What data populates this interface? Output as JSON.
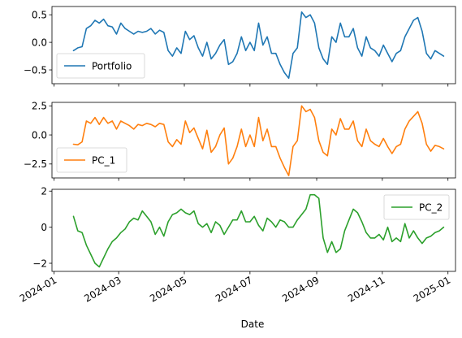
{
  "chart_data": {
    "type": "line",
    "xlabel": "Date",
    "x_ticks": [
      "2024-01",
      "2024-03",
      "2024-05",
      "2024-07",
      "2024-09",
      "2024-11",
      "2025-01"
    ],
    "xlim": [
      "2023-12-30",
      "2025-01-08"
    ],
    "panels": [
      {
        "series": [
          {
            "name": "Portfolio",
            "color": "#1f77b4",
            "x": [
              "2024-01-19",
              "2024-01-23",
              "2024-01-27",
              "2024-01-31",
              "2024-02-04",
              "2024-02-08",
              "2024-02-12",
              "2024-02-16",
              "2024-02-20",
              "2024-02-24",
              "2024-02-28",
              "2024-03-03",
              "2024-03-07",
              "2024-03-11",
              "2024-03-15",
              "2024-03-19",
              "2024-03-23",
              "2024-03-27",
              "2024-03-31",
              "2024-04-04",
              "2024-04-08",
              "2024-04-12",
              "2024-04-16",
              "2024-04-20",
              "2024-04-24",
              "2024-04-28",
              "2024-05-02",
              "2024-05-06",
              "2024-05-10",
              "2024-05-14",
              "2024-05-18",
              "2024-05-22",
              "2024-05-26",
              "2024-05-30",
              "2024-06-03",
              "2024-06-07",
              "2024-06-11",
              "2024-06-15",
              "2024-06-19",
              "2024-06-23",
              "2024-06-27",
              "2024-07-01",
              "2024-07-05",
              "2024-07-09",
              "2024-07-13",
              "2024-07-17",
              "2024-07-21",
              "2024-07-25",
              "2024-07-29",
              "2024-08-02",
              "2024-08-06",
              "2024-08-10",
              "2024-08-14",
              "2024-08-18",
              "2024-08-22",
              "2024-08-26",
              "2024-08-30",
              "2024-09-03",
              "2024-09-07",
              "2024-09-11",
              "2024-09-15",
              "2024-09-19",
              "2024-09-23",
              "2024-09-27",
              "2024-10-01",
              "2024-10-05",
              "2024-10-09",
              "2024-10-13",
              "2024-10-17",
              "2024-10-21",
              "2024-10-25",
              "2024-10-29",
              "2024-11-02",
              "2024-11-06",
              "2024-11-10",
              "2024-11-14",
              "2024-11-18",
              "2024-11-22",
              "2024-11-26",
              "2024-11-30",
              "2024-12-04",
              "2024-12-08",
              "2024-12-12",
              "2024-12-16",
              "2024-12-20",
              "2024-12-24",
              "2024-12-28"
            ],
            "values": [
              -0.15,
              -0.1,
              -0.08,
              0.25,
              0.3,
              0.4,
              0.35,
              0.42,
              0.3,
              0.28,
              0.15,
              0.35,
              0.25,
              0.2,
              0.15,
              0.2,
              0.18,
              0.2,
              0.25,
              0.15,
              0.22,
              0.18,
              -0.15,
              -0.25,
              -0.1,
              -0.2,
              0.2,
              0.05,
              0.12,
              -0.1,
              -0.25,
              0.0,
              -0.3,
              -0.2,
              -0.05,
              0.05,
              -0.4,
              -0.35,
              -0.2,
              0.1,
              -0.15,
              0.0,
              -0.15,
              0.35,
              -0.05,
              0.1,
              -0.2,
              -0.2,
              -0.4,
              -0.55,
              -0.65,
              -0.2,
              -0.1,
              0.55,
              0.45,
              0.5,
              0.35,
              -0.1,
              -0.3,
              -0.4,
              0.1,
              0.0,
              0.35,
              0.1,
              0.1,
              0.25,
              -0.1,
              -0.25,
              0.1,
              -0.1,
              -0.15,
              -0.25,
              -0.05,
              -0.2,
              -0.35,
              -0.2,
              -0.15,
              0.1,
              0.25,
              0.4,
              0.45,
              0.2,
              -0.2,
              -0.3,
              -0.15,
              -0.2,
              -0.25
            ]
          }
        ],
        "ylim": [
          -0.75,
          0.65
        ],
        "y_ticks": [
          -0.5,
          0.0,
          0.5
        ],
        "y_tick_labels": [
          "−0.5",
          "0.0",
          "0.5"
        ],
        "legend_position": "lower-left"
      },
      {
        "series": [
          {
            "name": "PC_1",
            "color": "#ff7f0e",
            "x": [
              "2024-01-19",
              "2024-01-23",
              "2024-01-27",
              "2024-01-31",
              "2024-02-04",
              "2024-02-08",
              "2024-02-12",
              "2024-02-16",
              "2024-02-20",
              "2024-02-24",
              "2024-02-28",
              "2024-03-03",
              "2024-03-07",
              "2024-03-11",
              "2024-03-15",
              "2024-03-19",
              "2024-03-23",
              "2024-03-27",
              "2024-03-31",
              "2024-04-04",
              "2024-04-08",
              "2024-04-12",
              "2024-04-16",
              "2024-04-20",
              "2024-04-24",
              "2024-04-28",
              "2024-05-02",
              "2024-05-06",
              "2024-05-10",
              "2024-05-14",
              "2024-05-18",
              "2024-05-22",
              "2024-05-26",
              "2024-05-30",
              "2024-06-03",
              "2024-06-07",
              "2024-06-11",
              "2024-06-15",
              "2024-06-19",
              "2024-06-23",
              "2024-06-27",
              "2024-07-01",
              "2024-07-05",
              "2024-07-09",
              "2024-07-13",
              "2024-07-17",
              "2024-07-21",
              "2024-07-25",
              "2024-07-29",
              "2024-08-02",
              "2024-08-06",
              "2024-08-10",
              "2024-08-14",
              "2024-08-18",
              "2024-08-22",
              "2024-08-26",
              "2024-08-30",
              "2024-09-03",
              "2024-09-07",
              "2024-09-11",
              "2024-09-15",
              "2024-09-19",
              "2024-09-23",
              "2024-09-27",
              "2024-10-01",
              "2024-10-05",
              "2024-10-09",
              "2024-10-13",
              "2024-10-17",
              "2024-10-21",
              "2024-10-25",
              "2024-10-29",
              "2024-11-02",
              "2024-11-06",
              "2024-11-10",
              "2024-11-14",
              "2024-11-18",
              "2024-11-22",
              "2024-11-26",
              "2024-11-30",
              "2024-12-04",
              "2024-12-08",
              "2024-12-12",
              "2024-12-16",
              "2024-12-20",
              "2024-12-24",
              "2024-12-28"
            ],
            "values": [
              -0.8,
              -0.85,
              -0.6,
              1.2,
              1.0,
              1.5,
              0.9,
              1.5,
              1.0,
              1.2,
              0.5,
              1.2,
              1.0,
              0.8,
              0.5,
              0.9,
              0.8,
              1.0,
              0.9,
              0.7,
              1.0,
              0.9,
              -0.6,
              -1.0,
              -0.4,
              -0.8,
              1.2,
              0.2,
              0.6,
              -0.3,
              -1.2,
              0.4,
              -1.5,
              -1.0,
              0.0,
              0.6,
              -2.5,
              -2.0,
              -1.0,
              0.5,
              -1.0,
              0.0,
              -1.0,
              1.5,
              -0.5,
              0.5,
              -1.0,
              -1.0,
              -2.0,
              -2.8,
              -3.5,
              -1.0,
              -0.5,
              2.5,
              2.0,
              2.2,
              1.5,
              -0.5,
              -1.5,
              -1.8,
              0.5,
              0.0,
              1.4,
              0.5,
              0.5,
              1.2,
              -0.5,
              -1.0,
              0.5,
              -0.5,
              -0.8,
              -1.0,
              -0.3,
              -1.0,
              -1.6,
              -1.0,
              -0.8,
              0.5,
              1.2,
              1.6,
              2.0,
              1.0,
              -0.8,
              -1.4,
              -0.9,
              -1.0,
              -1.2
            ]
          }
        ],
        "ylim": [
          -3.7,
          2.8
        ],
        "y_ticks": [
          -2.5,
          0.0,
          2.5
        ],
        "y_tick_labels": [
          "−2.5",
          "0.0",
          "2.5"
        ],
        "legend_position": "lower-left"
      },
      {
        "series": [
          {
            "name": "PC_2",
            "color": "#2ca02c",
            "x": [
              "2024-01-19",
              "2024-01-23",
              "2024-01-27",
              "2024-01-31",
              "2024-02-04",
              "2024-02-08",
              "2024-02-12",
              "2024-02-16",
              "2024-02-20",
              "2024-02-24",
              "2024-02-28",
              "2024-03-03",
              "2024-03-07",
              "2024-03-11",
              "2024-03-15",
              "2024-03-19",
              "2024-03-23",
              "2024-03-27",
              "2024-03-31",
              "2024-04-04",
              "2024-04-08",
              "2024-04-12",
              "2024-04-16",
              "2024-04-20",
              "2024-04-24",
              "2024-04-28",
              "2024-05-02",
              "2024-05-06",
              "2024-05-10",
              "2024-05-14",
              "2024-05-18",
              "2024-05-22",
              "2024-05-26",
              "2024-05-30",
              "2024-06-03",
              "2024-06-07",
              "2024-06-11",
              "2024-06-15",
              "2024-06-19",
              "2024-06-23",
              "2024-06-27",
              "2024-07-01",
              "2024-07-05",
              "2024-07-09",
              "2024-07-13",
              "2024-07-17",
              "2024-07-21",
              "2024-07-25",
              "2024-07-29",
              "2024-08-02",
              "2024-08-06",
              "2024-08-10",
              "2024-08-14",
              "2024-08-18",
              "2024-08-22",
              "2024-08-26",
              "2024-08-30",
              "2024-09-03",
              "2024-09-07",
              "2024-09-11",
              "2024-09-15",
              "2024-09-19",
              "2024-09-23",
              "2024-09-27",
              "2024-10-01",
              "2024-10-05",
              "2024-10-09",
              "2024-10-13",
              "2024-10-17",
              "2024-10-21",
              "2024-10-25",
              "2024-10-29",
              "2024-11-02",
              "2024-11-06",
              "2024-11-10",
              "2024-11-14",
              "2024-11-18",
              "2024-11-22",
              "2024-11-26",
              "2024-11-30",
              "2024-12-04",
              "2024-12-08",
              "2024-12-12",
              "2024-12-16",
              "2024-12-20",
              "2024-12-24",
              "2024-12-28"
            ],
            "values": [
              0.6,
              -0.2,
              -0.3,
              -1.0,
              -1.5,
              -2.0,
              -2.2,
              -1.7,
              -1.2,
              -0.8,
              -0.6,
              -0.3,
              -0.1,
              0.3,
              0.5,
              0.4,
              0.9,
              0.6,
              0.3,
              -0.4,
              0.0,
              -0.5,
              0.3,
              0.7,
              0.8,
              1.0,
              0.8,
              0.7,
              0.9,
              0.2,
              0.0,
              0.2,
              -0.3,
              0.3,
              0.1,
              -0.4,
              0.0,
              0.4,
              0.4,
              0.9,
              0.3,
              0.3,
              0.6,
              0.1,
              -0.2,
              0.5,
              0.3,
              0.0,
              0.4,
              0.3,
              0.0,
              0.0,
              0.4,
              0.7,
              1.0,
              1.8,
              1.8,
              1.6,
              -0.6,
              -1.4,
              -0.8,
              -1.4,
              -1.2,
              -0.2,
              0.4,
              1.0,
              0.8,
              0.3,
              -0.3,
              -0.6,
              -0.6,
              -0.4,
              -0.7,
              0.0,
              -0.8,
              -0.6,
              -0.8,
              0.2,
              -0.6,
              -0.2,
              -0.6,
              -0.9,
              -0.6,
              -0.5,
              -0.3,
              -0.2,
              0.0
            ]
          }
        ],
        "ylim": [
          -2.45,
          2.1
        ],
        "y_ticks": [
          -2,
          0,
          2
        ],
        "y_tick_labels": [
          "−2",
          "0",
          "2"
        ],
        "legend_position": "upper-right"
      }
    ]
  }
}
